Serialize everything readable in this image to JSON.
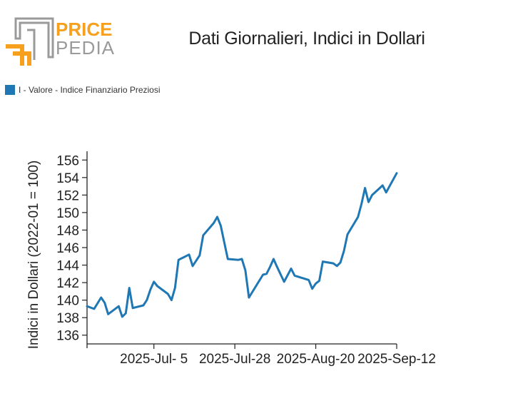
{
  "branding": {
    "logo_top": "PRICE",
    "logo_bottom": "PEDIA",
    "orange": "#f7a01e",
    "gray": "#9a9a9a"
  },
  "chart_data": {
    "type": "line",
    "title": "Dati Giornalieri, Indici in Dollari",
    "ylabel": "Indici in Dollari (2022-01 = 100)",
    "xlabel": "",
    "ylim": [
      135,
      157
    ],
    "yticks": [
      136,
      138,
      140,
      142,
      144,
      146,
      148,
      150,
      152,
      154,
      156
    ],
    "grid": false,
    "legend_position": "top-left",
    "x_ticks": [
      {
        "date": "2025-07-05",
        "label": "2025-Jul- 5"
      },
      {
        "date": "2025-07-28",
        "label": "2025-Jul-28"
      },
      {
        "date": "2025-08-20",
        "label": "2025-Aug-20"
      },
      {
        "date": "2025-09-12",
        "label": "2025-Sep-12"
      }
    ],
    "xlim": [
      "2025-06-16",
      "2025-09-12"
    ],
    "series": [
      {
        "name": "I - Valore - Indice Finanziario Preziosi",
        "color": "#1f77b4",
        "points": [
          [
            "2025-06-16",
            139.3
          ],
          [
            "2025-06-18",
            139.0
          ],
          [
            "2025-06-20",
            140.3
          ],
          [
            "2025-06-21",
            139.7
          ],
          [
            "2025-06-22",
            138.4
          ],
          [
            "2025-06-25",
            139.3
          ],
          [
            "2025-06-26",
            138.1
          ],
          [
            "2025-06-27",
            138.5
          ],
          [
            "2025-06-28",
            141.4
          ],
          [
            "2025-06-29",
            139.1
          ],
          [
            "2025-07-02",
            139.4
          ],
          [
            "2025-07-03",
            140.0
          ],
          [
            "2025-07-04",
            141.2
          ],
          [
            "2025-07-05",
            142.1
          ],
          [
            "2025-07-06",
            141.6
          ],
          [
            "2025-07-09",
            140.7
          ],
          [
            "2025-07-10",
            140.0
          ],
          [
            "2025-07-11",
            141.4
          ],
          [
            "2025-07-12",
            144.6
          ],
          [
            "2025-07-15",
            145.2
          ],
          [
            "2025-07-16",
            143.9
          ],
          [
            "2025-07-18",
            145.1
          ],
          [
            "2025-07-19",
            147.4
          ],
          [
            "2025-07-22",
            148.8
          ],
          [
            "2025-07-23",
            149.5
          ],
          [
            "2025-07-24",
            148.5
          ],
          [
            "2025-07-25",
            146.6
          ],
          [
            "2025-07-26",
            144.7
          ],
          [
            "2025-07-29",
            144.6
          ],
          [
            "2025-07-30",
            144.7
          ],
          [
            "2025-07-31",
            143.4
          ],
          [
            "2025-08-01",
            140.3
          ],
          [
            "2025-08-05",
            142.9
          ],
          [
            "2025-08-06",
            143.0
          ],
          [
            "2025-08-07",
            143.8
          ],
          [
            "2025-08-08",
            144.7
          ],
          [
            "2025-08-09",
            143.8
          ],
          [
            "2025-08-11",
            142.1
          ],
          [
            "2025-08-13",
            143.6
          ],
          [
            "2025-08-14",
            142.8
          ],
          [
            "2025-08-18",
            142.3
          ],
          [
            "2025-08-19",
            141.3
          ],
          [
            "2025-08-20",
            141.9
          ],
          [
            "2025-08-21",
            142.2
          ],
          [
            "2025-08-22",
            144.4
          ],
          [
            "2025-08-25",
            144.2
          ],
          [
            "2025-08-26",
            143.9
          ],
          [
            "2025-08-27",
            144.3
          ],
          [
            "2025-08-28",
            145.6
          ],
          [
            "2025-08-29",
            147.5
          ],
          [
            "2025-09-01",
            149.5
          ],
          [
            "2025-09-02",
            151.0
          ],
          [
            "2025-09-03",
            152.8
          ],
          [
            "2025-09-04",
            151.2
          ],
          [
            "2025-09-05",
            152.0
          ],
          [
            "2025-09-08",
            153.1
          ],
          [
            "2025-09-09",
            152.3
          ],
          [
            "2025-09-12",
            154.5
          ]
        ]
      }
    ]
  }
}
